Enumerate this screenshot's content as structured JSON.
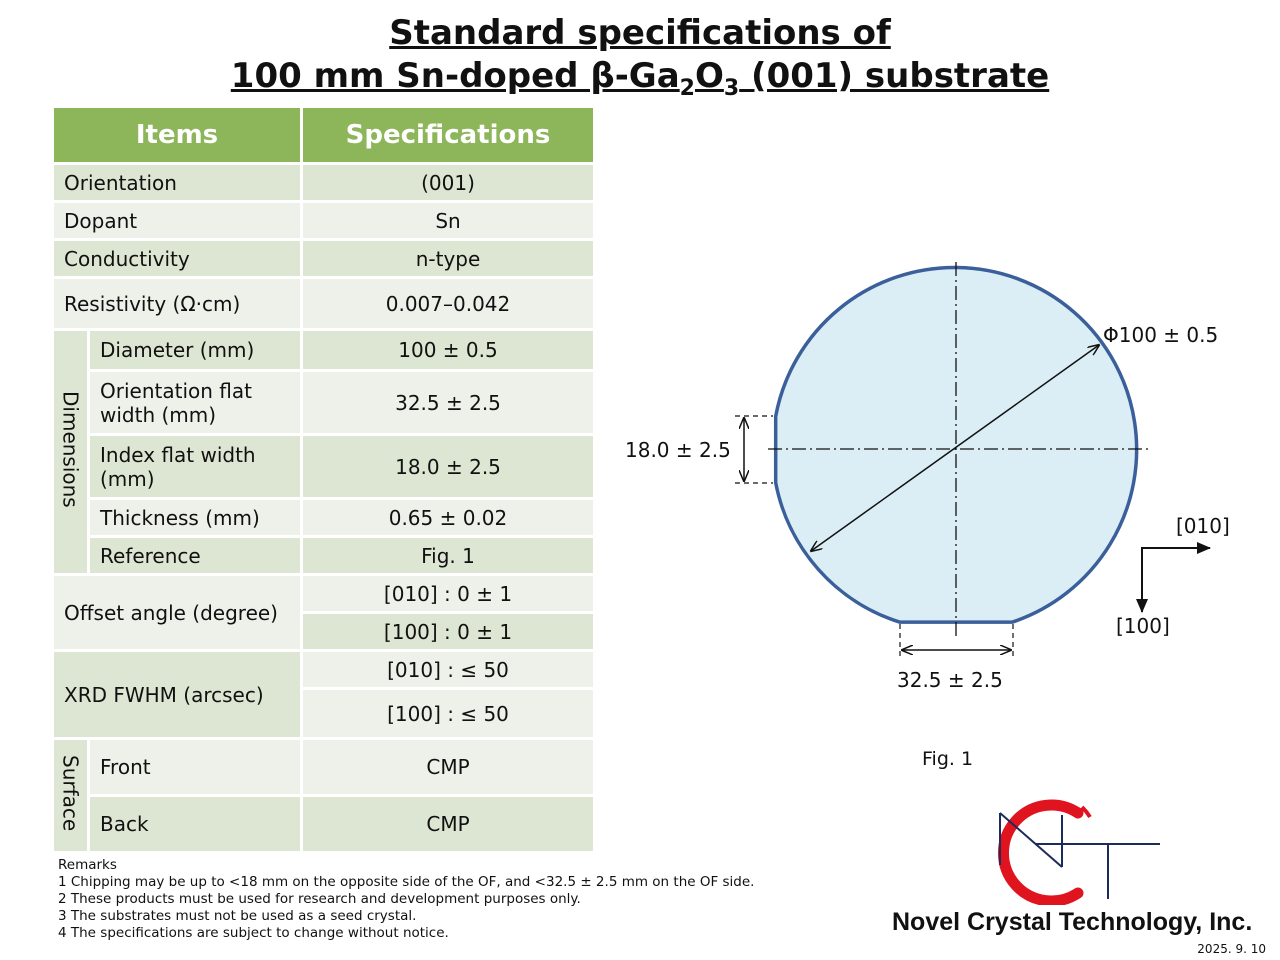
{
  "title": {
    "line1": "Standard specifications of",
    "line2_pre": "100 mm Sn-doped β-Ga",
    "line2_sub1": "2",
    "line2_mid": "O",
    "line2_sub2": "3",
    "line2_post": " (001) substrate"
  },
  "table": {
    "header_items": "Items",
    "header_specs": "Specifications",
    "orientation": {
      "label": "Orientation",
      "value": "(001)"
    },
    "dopant": {
      "label": "Dopant",
      "value": "Sn"
    },
    "conductivity": {
      "label": "Conductivity",
      "value": "n-type"
    },
    "resistivity": {
      "label": "Resistivity (Ω·cm)",
      "value": "0.007–0.042"
    },
    "dimensions": {
      "group": "Dimensions",
      "diameter": {
        "label": "Diameter (mm)",
        "value": "100 ± 0.5"
      },
      "of_width": {
        "label": "Orientation flat width (mm)",
        "value": "32.5 ± 2.5"
      },
      "if_width": {
        "label": "Index flat width (mm)",
        "value": "18.0 ± 2.5"
      },
      "thickness": {
        "label": "Thickness (mm)",
        "value": "0.65 ± 0.02"
      },
      "reference": {
        "label": "Reference",
        "value": "Fig. 1"
      }
    },
    "offset": {
      "label": "Offset angle (degree)",
      "value1": "[010] : 0 ± 1",
      "value2": "[100] : 0 ± 1"
    },
    "xrd": {
      "label": "XRD FWHM (arcsec)",
      "value1": "[010] : ≤ 50",
      "value2": "[100] : ≤ 50"
    },
    "surface": {
      "group": "Surface",
      "front": {
        "label": "Front",
        "value": "CMP"
      },
      "back": {
        "label": "Back",
        "value": "CMP"
      }
    }
  },
  "figure": {
    "diameter_label": "Φ100 ± 0.5",
    "if_label": "18.0 ± 2.5",
    "of_label": "32.5 ± 2.5",
    "dir_010": "[010]",
    "dir_100": "[100]",
    "caption": "Fig. 1",
    "wafer_fill": "#dbeef5",
    "wafer_stroke": "#3a5f9a"
  },
  "remarks": {
    "heading": "Remarks",
    "r1": "1 Chipping may be up to <18 mm on the opposite side of the OF, and <32.5 ± 2.5 mm on the OF side.",
    "r2": "2 These products must be used for research and development purposes only.",
    "r3": "3 The substrates must not be used as a seed crystal.",
    "r4": "4 The specifications are subject to change without notice."
  },
  "company": "Novel Crystal Technology, Inc.",
  "date": "2025. 9. 10",
  "colors": {
    "header_green": "#8db55a",
    "row_dark": "#dde6d2",
    "row_light": "#eef1e9",
    "logo_red": "#e0141e",
    "logo_navy": "#1d2a5c"
  }
}
